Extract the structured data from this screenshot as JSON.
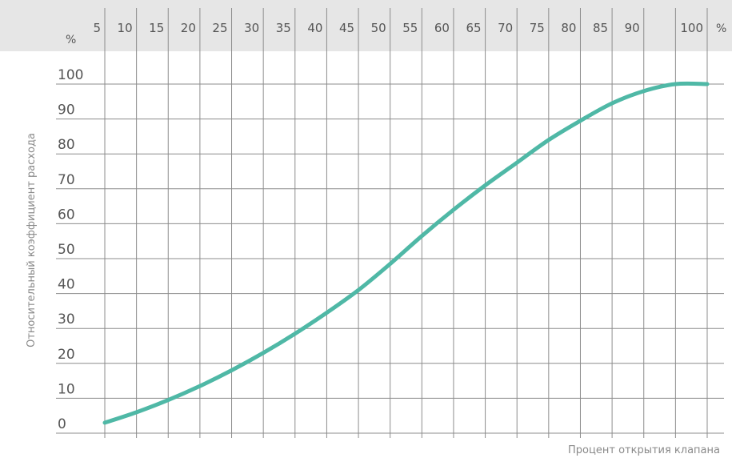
{
  "chart_data": {
    "type": "line",
    "title": "",
    "xlabel": "Процент открытия клапана",
    "ylabel": "Относительный коэффициент расхода",
    "x_unit": "%",
    "y_unit": "%",
    "xlim": [
      5,
      100
    ],
    "ylim": [
      0,
      100
    ],
    "x_ticks": [
      "5",
      "10",
      "15",
      "20",
      "25",
      "30",
      "35",
      "40",
      "45",
      "50",
      "55",
      "60",
      "65",
      "70",
      "75",
      "80",
      "85",
      "90",
      "100"
    ],
    "y_ticks": [
      "0",
      "10",
      "20",
      "30",
      "40",
      "50",
      "60",
      "70",
      "80",
      "90",
      "100"
    ],
    "grid": true,
    "legend": "none",
    "series": [
      {
        "color": "#4fb8a6",
        "x": [
          5,
          10,
          15,
          20,
          25,
          30,
          35,
          40,
          45,
          50,
          55,
          60,
          65,
          70,
          75,
          80,
          85,
          90,
          95,
          100
        ],
        "y": [
          3,
          6,
          9.5,
          13.5,
          18,
          23,
          28.5,
          34.5,
          41,
          48.5,
          56.5,
          64,
          71,
          77.5,
          84,
          89.5,
          94.5,
          98,
          100,
          100
        ]
      }
    ]
  }
}
